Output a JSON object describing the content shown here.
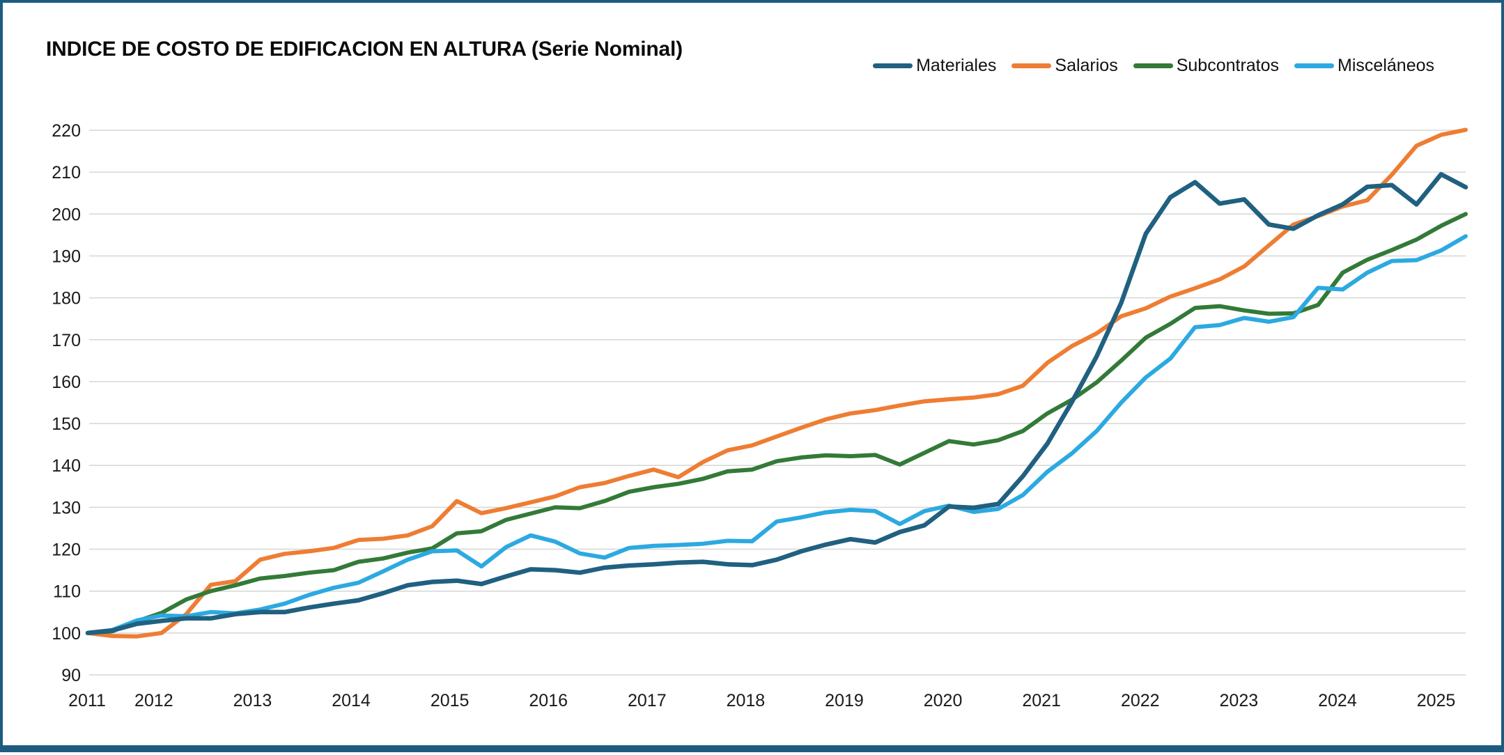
{
  "title": "INDICE DE COSTO DE EDIFICACION EN ALTURA (Serie Nominal)",
  "colors": {
    "border": "#1D5C80",
    "grid": "#D6D6D6",
    "axis_text": "#1A1A1A",
    "title_text": "#0B0B0B"
  },
  "chart_data": {
    "type": "line",
    "title": "INDICE DE COSTO DE EDIFICACION EN ALTURA (Serie Nominal)",
    "xlabel": "",
    "ylabel": "",
    "ylim": [
      90,
      220
    ],
    "y_tick_step": 10,
    "x_range": [
      2011.33,
      2025.3
    ],
    "x_tick_years": [
      2011,
      2012,
      2013,
      2014,
      2015,
      2016,
      2017,
      2018,
      2019,
      2020,
      2021,
      2022,
      2023,
      2024,
      2025
    ],
    "grid": "horizontal",
    "legend_position": "top-right",
    "sampling": "quarterly points from mid-2011 to early 2025",
    "series": [
      {
        "name": "Materiales",
        "color": "#206080",
        "values": [
          100,
          100.6,
          102.2,
          102.9,
          103.5,
          103.5,
          104.5,
          105,
          105,
          106.1,
          107,
          107.8,
          109.5,
          111.4,
          112.2,
          112.5,
          111.7,
          113.5,
          115.2,
          115,
          114.4,
          115.6,
          116.1,
          116.4,
          116.8,
          117,
          116.4,
          116.2,
          117.5,
          119.5,
          121.1,
          122.4,
          121.6,
          124.1,
          125.7,
          130.2,
          129.9,
          130.8,
          137.4,
          145.2,
          155.2,
          166,
          178.8,
          195.3,
          204,
          207.6,
          202.5,
          203.5,
          197.5,
          196.5,
          199.7,
          202.3,
          206.5,
          206.9,
          202.3,
          209.5,
          206.4
        ]
      },
      {
        "name": "Salarios",
        "color": "#EE7D33",
        "values": [
          100,
          99.3,
          99.2,
          100,
          104.5,
          111.5,
          112.4,
          117.5,
          118.9,
          119.5,
          120.3,
          122.2,
          122.5,
          123.3,
          125.5,
          131.5,
          128.6,
          129.8,
          131.2,
          132.6,
          134.8,
          135.8,
          137.5,
          139,
          137.2,
          140.8,
          143.6,
          144.8,
          146.9,
          149,
          151,
          152.4,
          153.2,
          154.3,
          155.3,
          155.8,
          156.2,
          157,
          159,
          164.5,
          168.5,
          171.5,
          175.6,
          177.5,
          180.3,
          182.3,
          184.4,
          187.5,
          192.5,
          197.5,
          199.5,
          201.8,
          203.3,
          209.4,
          216.3,
          218.9,
          220.1
        ]
      },
      {
        "name": "Subcontratos",
        "color": "#337A38",
        "values": [
          100,
          100.4,
          102.8,
          104.8,
          108,
          110,
          111.4,
          113,
          113.6,
          114.4,
          115,
          117,
          117.8,
          119.2,
          120.2,
          123.8,
          124.3,
          127,
          128.5,
          130,
          129.8,
          131.5,
          133.7,
          134.8,
          135.6,
          136.8,
          138.6,
          139,
          141,
          141.9,
          142.4,
          142.2,
          142.5,
          140.2,
          143,
          145.8,
          145,
          146,
          148.2,
          152.4,
          155.7,
          159.8,
          165,
          170.5,
          173.8,
          177.6,
          178,
          177,
          176.2,
          176.3,
          178.3,
          186,
          189.1,
          191.4,
          193.9,
          197.2,
          200
        ]
      },
      {
        "name": "Misceláneos",
        "color": "#2CA9E1",
        "values": [
          100,
          100.7,
          103,
          104.2,
          104,
          105,
          104.7,
          105.6,
          107,
          109.1,
          110.8,
          112,
          114.7,
          117.5,
          119.5,
          119.7,
          115.9,
          120.5,
          123.3,
          121.8,
          119,
          118,
          120.3,
          120.8,
          121,
          121.3,
          122,
          121.9,
          126.6,
          127.6,
          128.8,
          129.4,
          129.1,
          126,
          129.1,
          130.4,
          128.9,
          129.6,
          132.9,
          138.5,
          142.9,
          148.2,
          155,
          161,
          165.5,
          173,
          173.5,
          175.2,
          174.3,
          175.4,
          182.4,
          182,
          186,
          188.8,
          189,
          191.3,
          194.7
        ]
      }
    ]
  }
}
